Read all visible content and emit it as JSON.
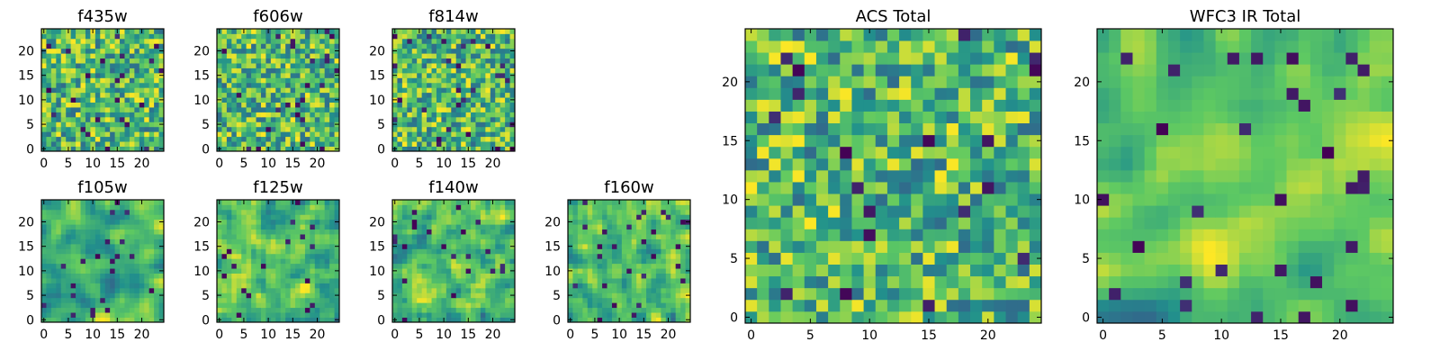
{
  "figure": {
    "colormap": "viridis",
    "colormap_stops": [
      "#440154",
      "#3b528b",
      "#21918c",
      "#5ec962",
      "#fde725"
    ],
    "grid_size": 25
  },
  "chart_data": [
    {
      "type": "heatmap",
      "title": "f435w",
      "xticks": [
        "0",
        "5",
        "10",
        "15",
        "20"
      ],
      "yticks": [
        "0",
        "5",
        "10",
        "15",
        "20"
      ],
      "xlim": [
        0,
        24
      ],
      "ylim": [
        0,
        24
      ],
      "seed": 11,
      "smooth": 0
    },
    {
      "type": "heatmap",
      "title": "f606w",
      "xticks": [
        "0",
        "5",
        "10",
        "15",
        "20"
      ],
      "yticks": [
        "0",
        "5",
        "10",
        "15",
        "20"
      ],
      "xlim": [
        0,
        24
      ],
      "ylim": [
        0,
        24
      ],
      "seed": 23,
      "smooth": 0
    },
    {
      "type": "heatmap",
      "title": "f814w",
      "xticks": [
        "0",
        "5",
        "10",
        "15",
        "20"
      ],
      "yticks": [
        "0",
        "5",
        "10",
        "15",
        "20"
      ],
      "xlim": [
        0,
        24
      ],
      "ylim": [
        0,
        24
      ],
      "seed": 37,
      "smooth": 0
    },
    {
      "type": "heatmap",
      "title": "f105w",
      "xticks": [
        "0",
        "5",
        "10",
        "15",
        "20"
      ],
      "yticks": [
        "0",
        "5",
        "10",
        "15",
        "20"
      ],
      "xlim": [
        0,
        24
      ],
      "ylim": [
        0,
        24
      ],
      "seed": 41,
      "smooth": 2
    },
    {
      "type": "heatmap",
      "title": "f125w",
      "xticks": [
        "0",
        "5",
        "10",
        "15",
        "20"
      ],
      "yticks": [
        "0",
        "5",
        "10",
        "15",
        "20"
      ],
      "xlim": [
        0,
        24
      ],
      "ylim": [
        0,
        24
      ],
      "seed": 53,
      "smooth": 1
    },
    {
      "type": "heatmap",
      "title": "f140w",
      "xticks": [
        "0",
        "5",
        "10",
        "15",
        "20"
      ],
      "yticks": [
        "0",
        "5",
        "10",
        "15",
        "20"
      ],
      "xlim": [
        0,
        24
      ],
      "ylim": [
        0,
        24
      ],
      "seed": 67,
      "smooth": 1
    },
    {
      "type": "heatmap",
      "title": "f160w",
      "xticks": [
        "0",
        "5",
        "10",
        "15",
        "20"
      ],
      "yticks": [
        "0",
        "5",
        "10",
        "15",
        "20"
      ],
      "xlim": [
        0,
        24
      ],
      "ylim": [
        0,
        24
      ],
      "seed": 79,
      "smooth": 1
    },
    {
      "type": "heatmap",
      "title": "ACS Total",
      "xticks": [
        "0",
        "5",
        "10",
        "15",
        "20"
      ],
      "yticks": [
        "0",
        "5",
        "10",
        "15",
        "20"
      ],
      "xlim": [
        0,
        24
      ],
      "ylim": [
        0,
        24
      ],
      "seed": 83,
      "smooth": 0
    },
    {
      "type": "heatmap",
      "title": "WFC3 IR Total",
      "xticks": [
        "0",
        "5",
        "10",
        "15",
        "20"
      ],
      "yticks": [
        "0",
        "5",
        "10",
        "15",
        "20"
      ],
      "xlim": [
        0,
        24
      ],
      "ylim": [
        0,
        24
      ],
      "seed": 97,
      "smooth": 2
    }
  ]
}
